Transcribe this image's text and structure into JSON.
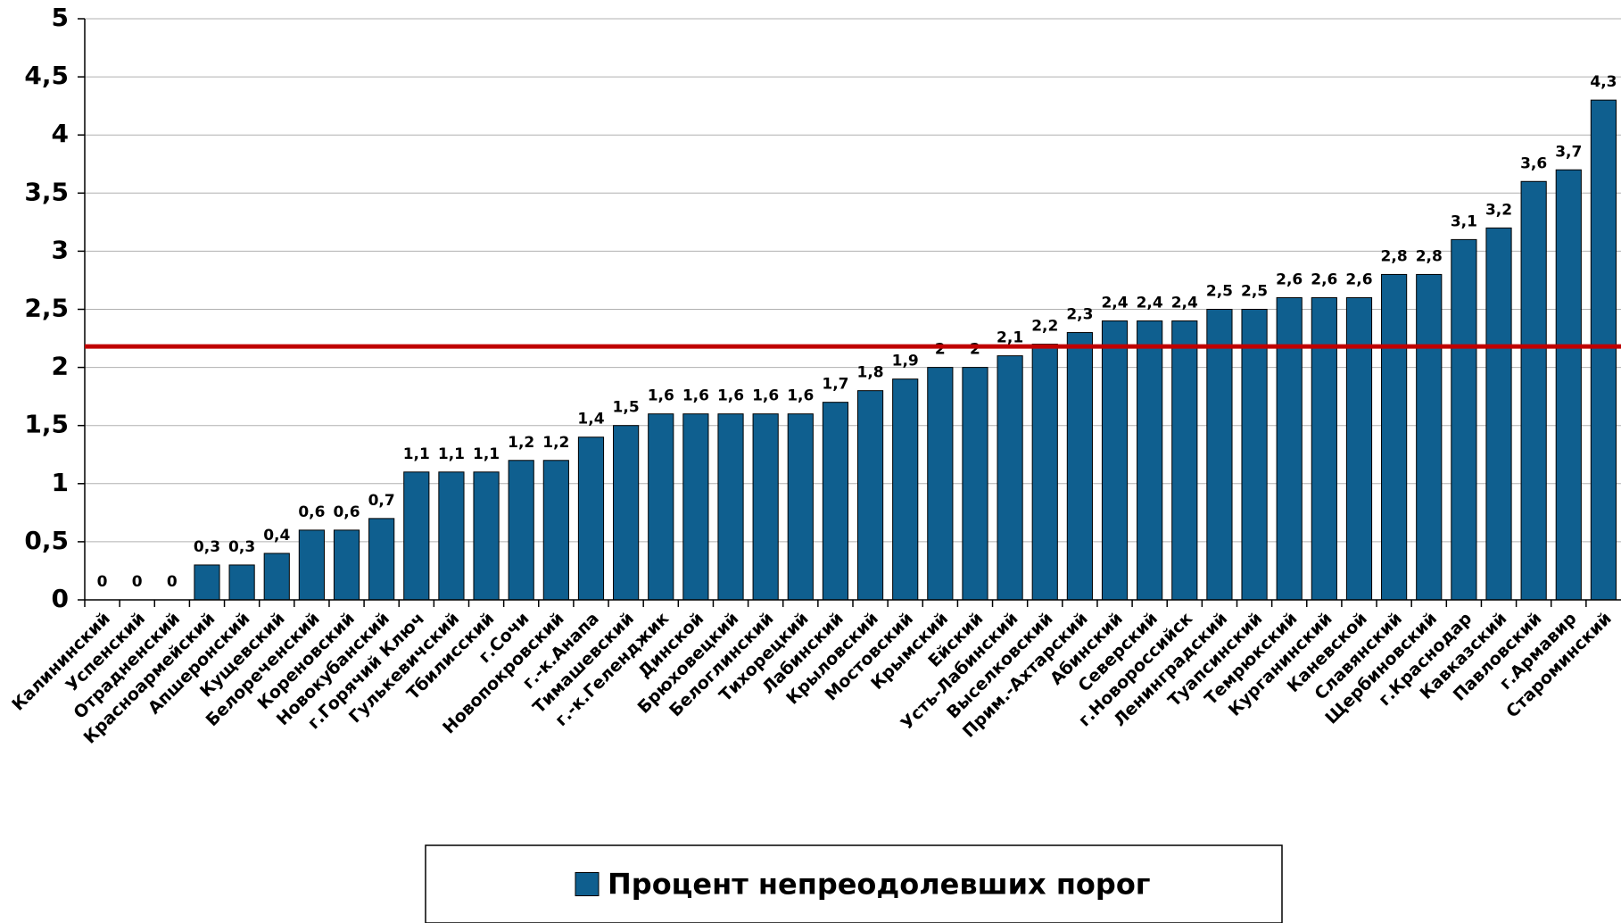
{
  "chart_data": {
    "type": "bar",
    "categories": [
      "Калининский",
      "Успенский",
      "Отрадненский",
      "Красноармейский",
      "Апшеронский",
      "Кущевский",
      "Белореченский",
      "Кореновский",
      "Новокубанский",
      "г.Горячий Ключ",
      "Гулькевичский",
      "Тбилисский",
      "г.Сочи",
      "Новопокровский",
      "г.-к.Анапа",
      "Тимашевский",
      "г.-к.Геленджик",
      "Динской",
      "Брюховецкий",
      "Белоглинский",
      "Тихорецкий",
      "Лабинский",
      "Крыловский",
      "Мостовский",
      "Крымский",
      "Ейский",
      "Усть-Лабинский",
      "Выселковский",
      "Прим.-Ахтарский",
      "Абинский",
      "Северский",
      "г.Новороссийск",
      "Ленинградский",
      "Туапсинский",
      "Темрюкский",
      "Курганинский",
      "Каневской",
      "Славянский",
      "Щербиновский",
      "г.Краснодар",
      "Кавказский",
      "Павловский",
      "г.Армавир",
      "Староминский"
    ],
    "series": [
      {
        "name": "Процент непреодолевших порог",
        "color": "#0f5f8f",
        "values": [
          0,
          0,
          0,
          0.3,
          0.3,
          0.4,
          0.6,
          0.6,
          0.7,
          1.1,
          1.1,
          1.1,
          1.2,
          1.2,
          1.4,
          1.5,
          1.6,
          1.6,
          1.6,
          1.6,
          1.6,
          1.7,
          1.8,
          1.9,
          2,
          2,
          2.1,
          2.2,
          2.3,
          2.4,
          2.4,
          2.4,
          2.5,
          2.5,
          2.6,
          2.6,
          2.6,
          2.8,
          2.8,
          3.1,
          3.2,
          3.6,
          3.7,
          4.3
        ],
        "value_labels": [
          "0",
          "0",
          "0",
          "0,3",
          "0,3",
          "0,4",
          "0,6",
          "0,6",
          "0,7",
          "1,1",
          "1,1",
          "1,1",
          "1,2",
          "1,2",
          "1,4",
          "1,5",
          "1,6",
          "1,6",
          "1,6",
          "1,6",
          "1,6",
          "1,7",
          "1,8",
          "1,9",
          "2",
          "2",
          "2,1",
          "2,2",
          "2,3",
          "2,4",
          "2,4",
          "2,4",
          "2,5",
          "2,5",
          "2,6",
          "2,6",
          "2,6",
          "2,8",
          "2,8",
          "3,1",
          "3,2",
          "3,6",
          "3,7",
          "4,3"
        ]
      }
    ],
    "ylim": [
      0,
      5
    ],
    "yticks": [
      0,
      {
        "value": 0.5,
        "label": "0,5"
      },
      1,
      {
        "value": 1.5,
        "label": "1,5"
      },
      2,
      {
        "value": 2.5,
        "label": "2,5"
      },
      3,
      {
        "value": 3.5,
        "label": "3,5"
      },
      4,
      {
        "value": 4.5,
        "label": "4,5"
      },
      5
    ],
    "grid": true,
    "reference_line": {
      "value": 2.18,
      "color": "#c00000"
    },
    "legend": "bottom"
  }
}
